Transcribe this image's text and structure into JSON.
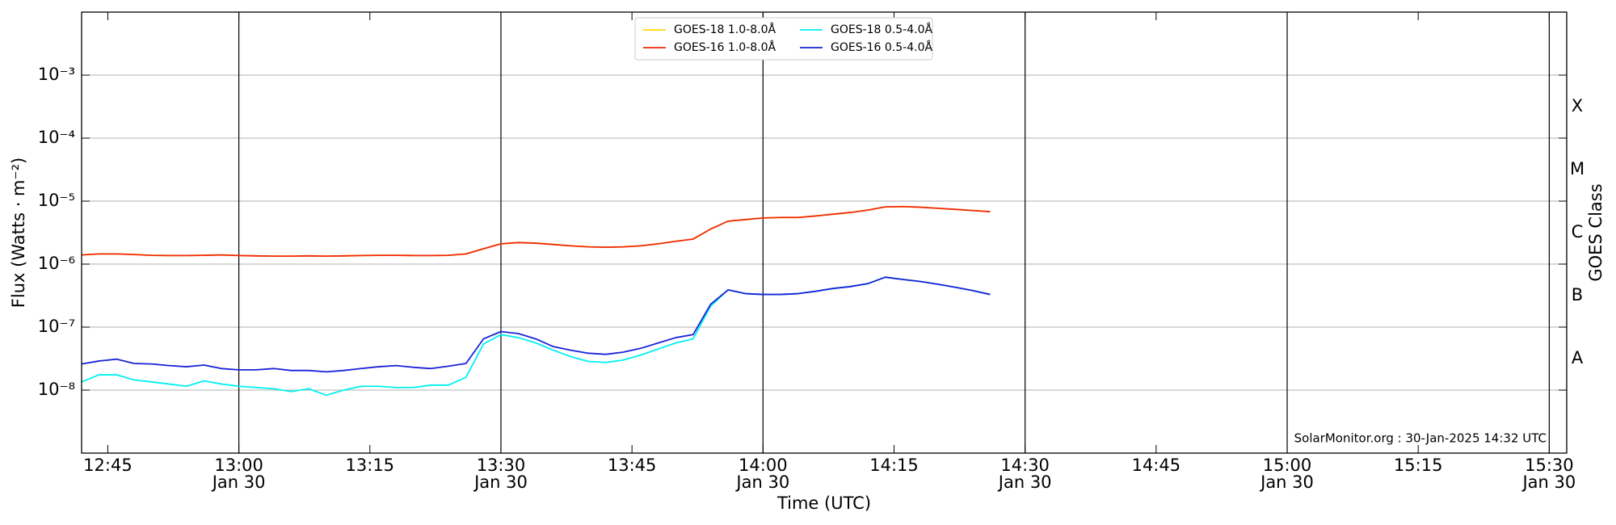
{
  "chart_data": {
    "type": "line",
    "x_label": "Time (UTC)",
    "y_label": "Flux (Watts · m⁻²)",
    "y2_label": "GOES Class",
    "annotation": "SolarMonitor.org : 30-Jan-2025 14:32 UTC",
    "yscale": "log",
    "grid": true,
    "xgrid": true,
    "legend": "upper center",
    "xlim": [
      "12:42",
      "15:32"
    ],
    "ylim": [
      1e-09,
      0.01
    ],
    "y2lim": [
      1e-09,
      0.01
    ],
    "xticks": [
      "12:45",
      {
        "value": "13:00",
        "label": [
          "13:00",
          "Jan 30"
        ]
      },
      "13:15",
      {
        "value": "13:30",
        "label": [
          "13:30",
          "Jan 30"
        ]
      },
      "13:45",
      {
        "value": "14:00",
        "label": [
          "14:00",
          "Jan 30"
        ]
      },
      "14:15",
      {
        "value": "14:30",
        "label": [
          "14:30",
          "Jan 30"
        ]
      },
      "14:45",
      {
        "value": "15:00",
        "label": [
          "15:00",
          "Jan 30"
        ]
      },
      "15:15",
      {
        "value": "15:30",
        "label": [
          "15:30",
          "Jan 30"
        ]
      }
    ],
    "yticks": [
      {
        "value": 1e-08,
        "label": "10⁻⁸"
      },
      {
        "value": 1e-07,
        "label": "10⁻⁷"
      },
      {
        "value": 1e-06,
        "label": "10⁻⁶"
      },
      {
        "value": 1e-05,
        "label": "10⁻⁵"
      },
      {
        "value": 0.0001,
        "label": "10⁻⁴"
      },
      {
        "value": 0.001,
        "label": "10⁻³"
      }
    ],
    "y2ticks": [
      {
        "value": 3.16e-08,
        "label": "A"
      },
      {
        "value": 3.16e-07,
        "label": "B"
      },
      {
        "value": 3.16e-06,
        "label": "C"
      },
      {
        "value": 3.16e-05,
        "label": "M"
      },
      {
        "value": 0.000316,
        "label": "X"
      }
    ],
    "x": [
      "12:42",
      "12:44",
      "12:46",
      "12:48",
      "12:50",
      "12:52",
      "12:54",
      "12:56",
      "12:58",
      "13:00",
      "13:02",
      "13:04",
      "13:06",
      "13:08",
      "13:10",
      "13:12",
      "13:14",
      "13:16",
      "13:18",
      "13:20",
      "13:22",
      "13:24",
      "13:26",
      "13:28",
      "13:30",
      "13:32",
      "13:34",
      "13:36",
      "13:38",
      "13:40",
      "13:42",
      "13:44",
      "13:46",
      "13:48",
      "13:50",
      "13:52",
      "13:54",
      "13:56",
      "13:58",
      "14:00",
      "14:02",
      "14:04",
      "14:06",
      "14:08",
      "14:10",
      "14:12",
      "14:14",
      "14:16",
      "14:18",
      "14:20",
      "14:22",
      "14:24",
      "14:26"
    ],
    "series": [
      {
        "name": "GOES-18 1.0-8.0Å",
        "color": "#ffd700",
        "values": [
          1.4e-06,
          1.45e-06,
          1.45e-06,
          1.42e-06,
          1.38e-06,
          1.37e-06,
          1.37e-06,
          1.38e-06,
          1.4e-06,
          1.37e-06,
          1.35e-06,
          1.34e-06,
          1.34e-06,
          1.35e-06,
          1.34e-06,
          1.35e-06,
          1.37e-06,
          1.38e-06,
          1.38e-06,
          1.37e-06,
          1.37e-06,
          1.38e-06,
          1.45e-06,
          1.75e-06,
          2.1e-06,
          2.2e-06,
          2.15e-06,
          2.05e-06,
          1.95e-06,
          1.88e-06,
          1.85e-06,
          1.88e-06,
          1.95e-06,
          2.1e-06,
          2.3e-06,
          2.5e-06,
          3.6e-06,
          4.8e-06,
          5.1e-06,
          5.4e-06,
          5.5e-06,
          5.5e-06,
          5.8e-06,
          6.2e-06,
          6.6e-06,
          7.2e-06,
          8.1e-06,
          8.2e-06,
          8e-06,
          7.7e-06,
          7.4e-06,
          7.1e-06,
          6.8e-06
        ]
      },
      {
        "name": "GOES-16 1.0-8.0Å",
        "color": "#f02a0a",
        "values": [
          1.4e-06,
          1.45e-06,
          1.45e-06,
          1.42e-06,
          1.38e-06,
          1.37e-06,
          1.37e-06,
          1.38e-06,
          1.4e-06,
          1.37e-06,
          1.35e-06,
          1.34e-06,
          1.34e-06,
          1.35e-06,
          1.34e-06,
          1.35e-06,
          1.37e-06,
          1.38e-06,
          1.38e-06,
          1.37e-06,
          1.37e-06,
          1.38e-06,
          1.45e-06,
          1.75e-06,
          2.1e-06,
          2.2e-06,
          2.15e-06,
          2.05e-06,
          1.95e-06,
          1.88e-06,
          1.85e-06,
          1.88e-06,
          1.95e-06,
          2.1e-06,
          2.3e-06,
          2.5e-06,
          3.6e-06,
          4.8e-06,
          5.1e-06,
          5.4e-06,
          5.5e-06,
          5.5e-06,
          5.8e-06,
          6.2e-06,
          6.6e-06,
          7.2e-06,
          8.1e-06,
          8.2e-06,
          8e-06,
          7.7e-06,
          7.4e-06,
          7.1e-06,
          6.8e-06
        ]
      },
      {
        "name": "GOES-18 0.5-4.0Å",
        "color": "#00f0f0",
        "values": [
          1.35e-08,
          1.75e-08,
          1.75e-08,
          1.45e-08,
          1.35e-08,
          1.25e-08,
          1.15e-08,
          1.4e-08,
          1.25e-08,
          1.15e-08,
          1.1e-08,
          1.05e-08,
          9.5e-09,
          1.05e-08,
          8.3e-09,
          1e-08,
          1.15e-08,
          1.15e-08,
          1.1e-08,
          1.1e-08,
          1.2e-08,
          1.2e-08,
          1.6e-08,
          5.4e-08,
          7.6e-08,
          6.8e-08,
          5.6e-08,
          4.3e-08,
          3.4e-08,
          2.85e-08,
          2.75e-08,
          3e-08,
          3.6e-08,
          4.5e-08,
          5.6e-08,
          6.5e-08,
          2.15e-07,
          3.9e-07,
          3.4e-07,
          3.3e-07,
          3.3e-07,
          3.4e-07,
          3.7e-07,
          4.1e-07,
          4.4e-07,
          4.9e-07,
          6.2e-07,
          5.7e-07,
          5.3e-07,
          4.8e-07,
          4.3e-07,
          3.8e-07,
          3.3e-07
        ]
      },
      {
        "name": "GOES-16 0.5-4.0Å",
        "color": "#1a22d6",
        "values": [
          2.6e-08,
          2.9e-08,
          3.1e-08,
          2.65e-08,
          2.6e-08,
          2.45e-08,
          2.35e-08,
          2.5e-08,
          2.2e-08,
          2.1e-08,
          2.1e-08,
          2.2e-08,
          2.05e-08,
          2.05e-08,
          1.95e-08,
          2.05e-08,
          2.2e-08,
          2.35e-08,
          2.45e-08,
          2.3e-08,
          2.2e-08,
          2.4e-08,
          2.65e-08,
          6.5e-08,
          8.5e-08,
          7.9e-08,
          6.5e-08,
          4.9e-08,
          4.3e-08,
          3.85e-08,
          3.7e-08,
          4e-08,
          4.6e-08,
          5.6e-08,
          6.8e-08,
          7.6e-08,
          2.3e-07,
          3.9e-07,
          3.4e-07,
          3.3e-07,
          3.3e-07,
          3.4e-07,
          3.7e-07,
          4.1e-07,
          4.4e-07,
          4.9e-07,
          6.2e-07,
          5.7e-07,
          5.3e-07,
          4.8e-07,
          4.3e-07,
          3.8e-07,
          3.3e-07
        ]
      }
    ]
  }
}
